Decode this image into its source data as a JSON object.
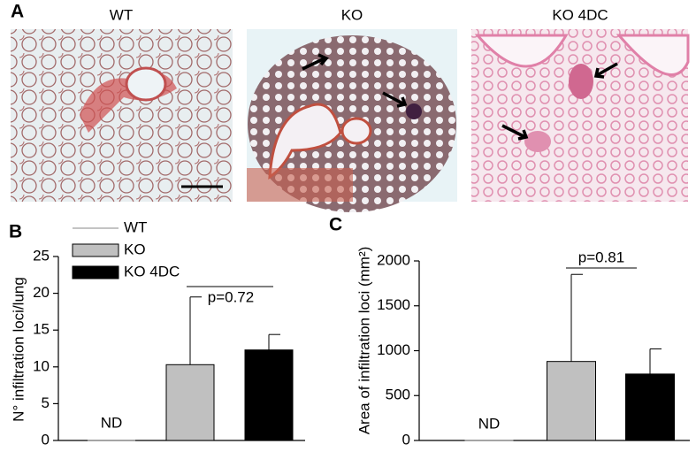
{
  "panels": {
    "label": "A",
    "images": [
      {
        "title": "WT"
      },
      {
        "title": "KO"
      },
      {
        "title": "KO 4DC"
      }
    ]
  },
  "chart_data": [
    {
      "type": "bar",
      "panel_label": "B",
      "ylabel": "N° infiltration loci/lung",
      "ylim": [
        0,
        25
      ],
      "yticks": [
        0,
        5,
        10,
        15,
        20,
        25
      ],
      "legend": "upper left",
      "series": [
        {
          "name": "WT",
          "color": "#ffffff",
          "values": [
            0
          ],
          "errors": [
            null
          ]
        },
        {
          "name": "KO",
          "color": "#c0c0c0",
          "values": [
            10.3
          ],
          "errors": [
            9.2
          ]
        },
        {
          "name": "KO 4DC",
          "color": "#000000",
          "values": [
            12.3
          ],
          "errors": [
            2.1
          ]
        }
      ],
      "annotations": [
        "p=0.72",
        "ND"
      ]
    },
    {
      "type": "bar",
      "panel_label": "C",
      "ylabel": "Area of infiltration loci (mm²)",
      "ylim": [
        0,
        2000
      ],
      "yticks": [
        0,
        500,
        1000,
        1500,
        2000
      ],
      "values": [
        0,
        880,
        740
      ],
      "errors": [
        null,
        970,
        280
      ],
      "colors": [
        "#ffffff",
        "#c0c0c0",
        "#000000"
      ],
      "annotations": [
        "p=0.81",
        "ND"
      ]
    }
  ]
}
